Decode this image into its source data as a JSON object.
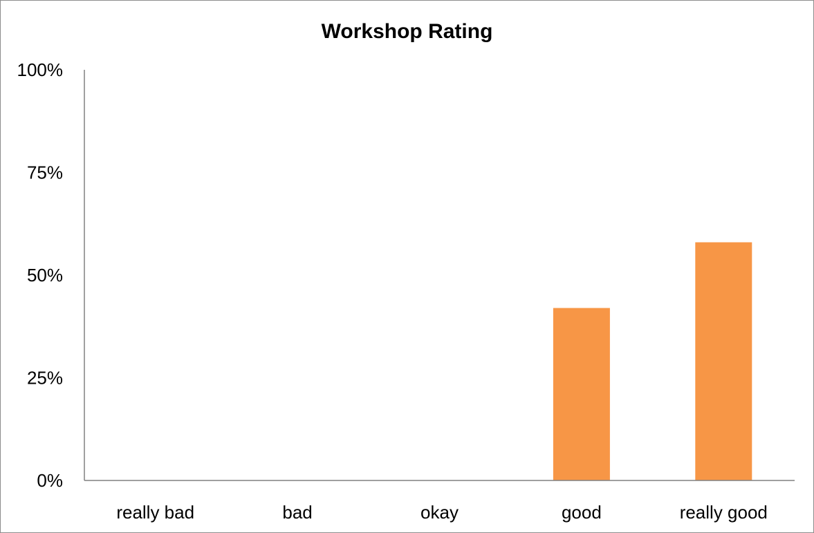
{
  "chart_data": {
    "type": "bar",
    "title": "Workshop Rating",
    "categories": [
      "really bad",
      "bad",
      "okay",
      "good",
      "really good"
    ],
    "values": [
      0,
      0,
      0,
      42,
      58
    ],
    "value_unit": "%",
    "ylim": [
      0,
      100
    ],
    "yticks": [
      0,
      25,
      50,
      75,
      100
    ],
    "ytick_labels": [
      "0%",
      "25%",
      "50%",
      "75%",
      "100%"
    ],
    "xlabel": "",
    "ylabel": "",
    "grid": false,
    "legend": "none",
    "bar_color": "#F79646",
    "axis_color": "#808080"
  }
}
